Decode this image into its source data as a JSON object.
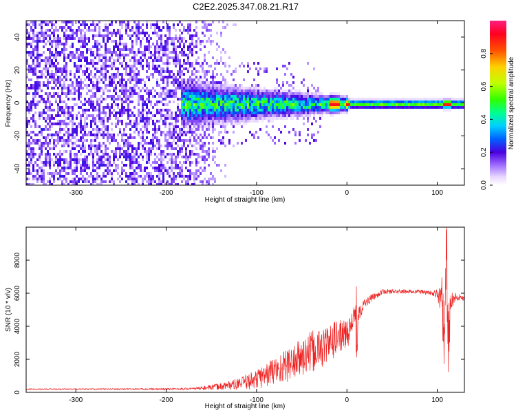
{
  "title": "C2E2.2025.347.08.21.R17",
  "chart_data": [
    {
      "type": "heatmap",
      "title": "C2E2.2025.347.08.21.R17",
      "xlabel": "Height of straight line (km)",
      "ylabel": "Frequency (Hz)",
      "xlim": [
        -355,
        130
      ],
      "ylim": [
        -50,
        50
      ],
      "xticks": [
        -300,
        -200,
        -100,
        0,
        100
      ],
      "yticks": [
        -40,
        -20,
        0,
        20,
        40
      ],
      "colorbar": {
        "label": "Normalized spectral amplitude",
        "range": [
          0,
          1
        ],
        "ticks": [
          0.0,
          0.2,
          0.4,
          0.6,
          0.8
        ],
        "tick_labels": [
          "0.0",
          "0.2",
          "0.4",
          "0.6",
          "0.8"
        ]
      },
      "description_of_signal": {
        "noise_region_km": [
          -355,
          -180
        ],
        "signal_band_center_hz": 0,
        "signal_band_halfwidth_hz": [
          10,
          3
        ],
        "peak_amplitude_km": [
          -20,
          110
        ]
      }
    },
    {
      "type": "line",
      "xlabel": "Height of straight line (km)",
      "ylabel": "SNR (10 * v/v)",
      "xlim": [
        -355,
        130
      ],
      "ylim": [
        0,
        10000
      ],
      "xticks": [
        -300,
        -200,
        -100,
        0,
        100
      ],
      "yticks": [
        0,
        2000,
        4000,
        6000,
        8000
      ],
      "color": "#ee2222",
      "series": [
        {
          "name": "SNR",
          "x": [
            -355,
            -300,
            -250,
            -200,
            -170,
            -150,
            -120,
            -100,
            -80,
            -60,
            -40,
            -20,
            -10,
            0,
            10,
            20,
            30,
            40,
            60,
            80,
            95,
            100,
            105,
            108,
            110,
            112,
            115,
            120,
            130
          ],
          "y": [
            200,
            200,
            200,
            200,
            220,
            300,
            500,
            800,
            1300,
            1800,
            2400,
            2900,
            3400,
            3500,
            4700,
            5400,
            5800,
            6100,
            6100,
            6100,
            6000,
            5900,
            5600,
            3000,
            9000,
            3000,
            5700,
            5800,
            5700
          ],
          "noise_amplitude": [
            30,
            30,
            30,
            40,
            60,
            150,
            350,
            600,
            900,
            1100,
            1300,
            1200,
            1000,
            900,
            700,
            300,
            200,
            150,
            120,
            120,
            150,
            400,
            900,
            1500,
            1500,
            1500,
            700,
            250,
            150
          ]
        }
      ]
    }
  ]
}
